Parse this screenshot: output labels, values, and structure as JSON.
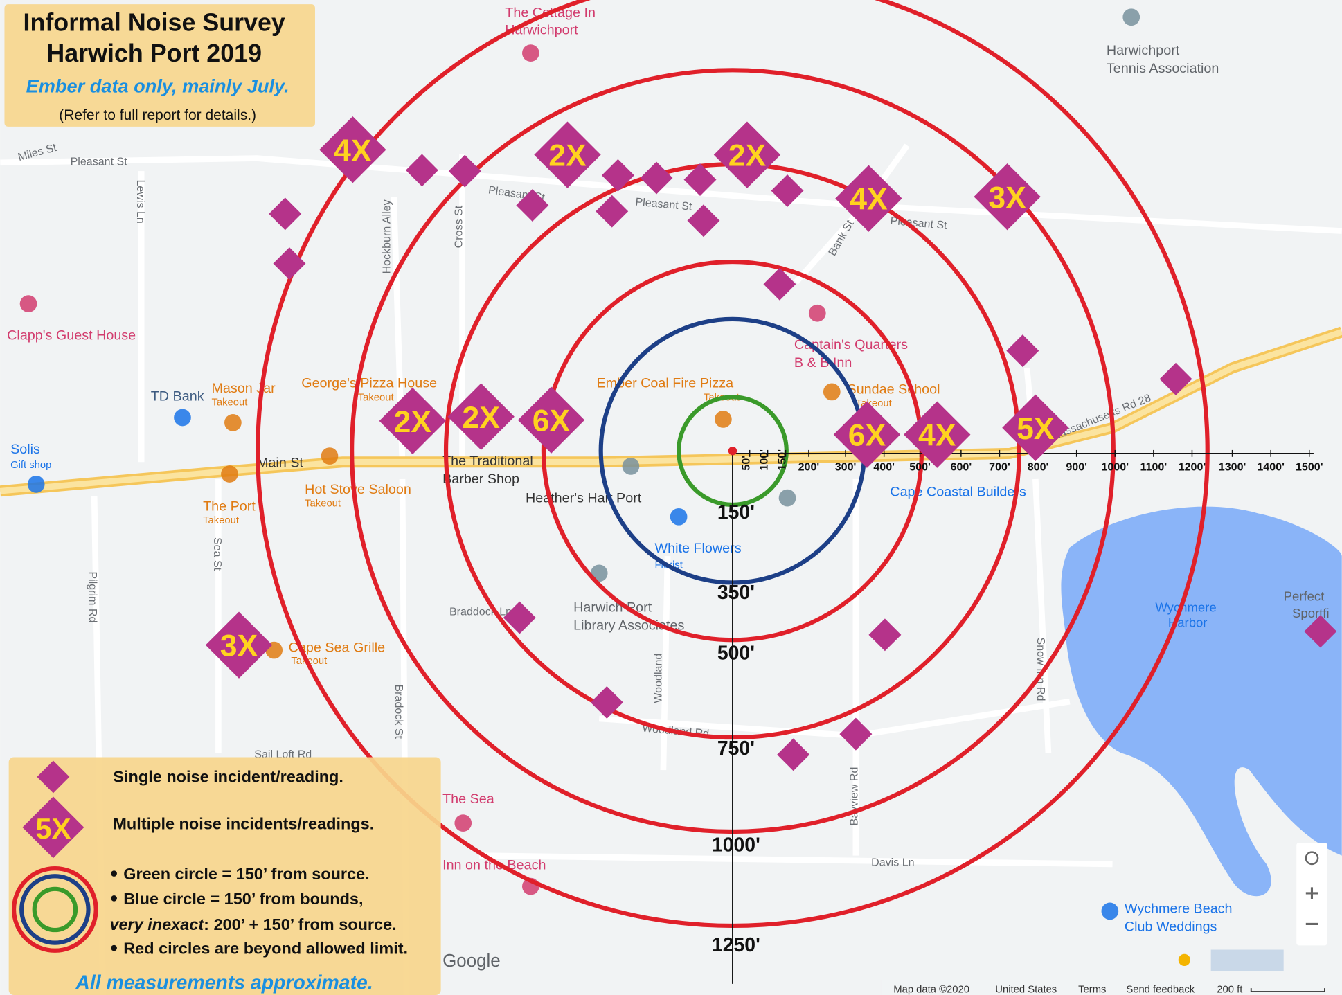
{
  "title_box": {
    "title": "Informal Noise Survey",
    "subtitle": "Harwich Port 2019",
    "note": "Ember data only, mainly July.",
    "refer": "(Refer to full report for details.)"
  },
  "legend": {
    "single": "Single noise incident/reading.",
    "multiple_sample": "5X",
    "multiple": "Multiple noise incidents/readings.",
    "green": "Green circle = 150’ from source.",
    "blue": "Blue circle = 150’ from bounds,",
    "inexact": "very inexact",
    "inexact_rest": ": 200’ + 150’ from source.",
    "red": "Red circles are beyond allowed limit.",
    "footer": "All measurements approximate."
  },
  "rings": [
    "150'",
    "350'",
    "500'",
    "750'",
    "1000'",
    "1250'"
  ],
  "scale_ticks": [
    "50'",
    "100'",
    "150'",
    "200'",
    "300'",
    "400'",
    "500'",
    "600'",
    "700'",
    "800'",
    "900'",
    "1000'",
    "1100'",
    "1200'",
    "1300'",
    "1400'",
    "1500'"
  ],
  "multi_markers": [
    "4X",
    "2X",
    "2X",
    "4X",
    "3X",
    "2X",
    "2X",
    "6X",
    "6X",
    "4X",
    "5X",
    "3X"
  ],
  "places": [
    "The Cottage In",
    "Harwichport",
    "Harwichport",
    "Tennis Association",
    "Clapp's Guest House",
    "TD Bank",
    "Mason Jar",
    "George's Pizza House",
    "Ember Coal Fire Pizza",
    "Captain's Quarters",
    "B & B Inn",
    "Sundae School",
    "Solis",
    "Gift shop",
    "Main St",
    "The Traditional",
    "Barber Shop",
    "Hot Stove Saloon",
    "Heather's Hair Port",
    "The Port",
    "Cape Coastal Builders",
    "White Flowers",
    "Florist",
    "Harwich Port",
    "Library Associates",
    "Cape Sea Grille",
    "Wychmere",
    "Harbor",
    "Perfect",
    "Sportfi",
    "The Sea",
    "Inn on the Beach",
    "Wychmere Beach",
    "Club Weddings",
    "Google",
    "Takeout",
    "Takeout",
    "Takeout",
    "Takeout",
    "Takeout",
    "Takeout",
    "Takeout"
  ],
  "streets": [
    "Pleasant St",
    "Miles St",
    "Lewis Ln",
    "Pleasant St",
    "Pleasant St",
    "Pleasant St",
    "Cross St",
    "Hockburn Alley",
    "Bank St",
    "Sea St",
    "Pilgrim Rd",
    "Braddock Ln",
    "Bradock St",
    "Woodland",
    "Woodland Rd",
    "Sail Loft Rd",
    "Davis Ln",
    "Bayview Rd",
    "Snow Inn Rd",
    "Massachusetts Rd 28"
  ],
  "attribution": [
    "Map data ©2020",
    "United States",
    "Terms",
    "Send feedback",
    "200 ft"
  ]
}
